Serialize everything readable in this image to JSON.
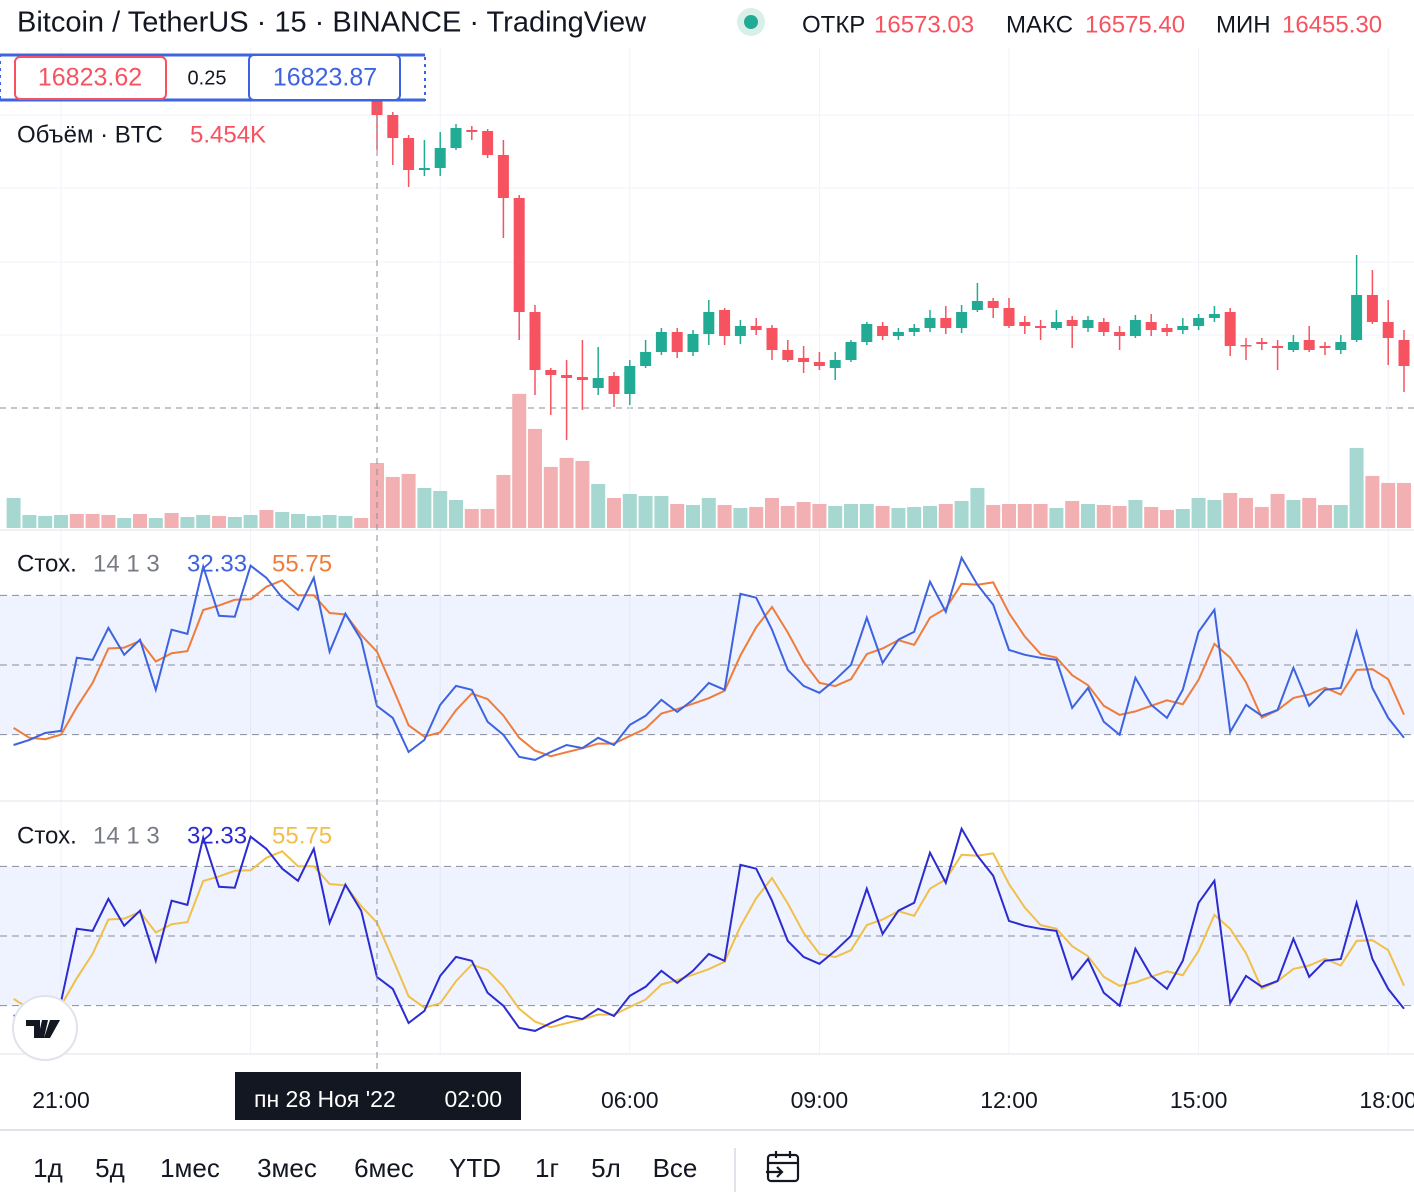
{
  "header": {
    "title": "Bitcoin / TetherUS · 15 · BINANCE · TradingView",
    "open_label": "ОТКР",
    "high_label": "МАКС",
    "low_label": "МИН"
  },
  "measure": {
    "from": "16823.62",
    "diff": "0.25",
    "to": "16823.87"
  },
  "chart_data": {
    "type": "candlestick",
    "categories": [
      null,
      null,
      null,
      "21:00",
      null,
      null,
      null,
      null,
      null,
      null,
      null,
      null,
      null,
      null,
      null,
      null,
      null,
      null,
      null,
      null,
      null,
      null,
      null,
      null,
      null,
      null,
      null,
      null,
      null,
      null,
      null,
      null,
      null,
      null,
      null,
      null,
      null,
      null,
      null,
      "06:00",
      null,
      null,
      null,
      null,
      null,
      null,
      null,
      null,
      null,
      null,
      null,
      "09:00",
      null,
      null,
      null,
      null,
      null,
      null,
      null,
      null,
      null,
      null,
      null,
      "12:00",
      null,
      null,
      null,
      null,
      null,
      null,
      null,
      null,
      null,
      null,
      null,
      "15:00",
      null,
      null,
      null,
      null,
      null,
      null,
      null,
      null,
      null,
      null,
      null,
      "18:00",
      null
    ],
    "hover_date": "пн 28 Ноя '22",
    "hover_time": "02:00",
    "price": {
      "open": [
        null,
        null,
        null,
        null,
        null,
        null,
        null,
        null,
        null,
        null,
        null,
        null,
        null,
        null,
        null,
        null,
        null,
        null,
        null,
        null,
        null,
        null,
        null,
        16573.03,
        16525,
        16479,
        16415,
        16419,
        16459,
        16495,
        16493,
        16445,
        16359,
        16131,
        16015,
        16005,
        16001,
        15979,
        16003,
        15967,
        16023,
        16051,
        16091,
        16051,
        16087,
        16135,
        16083,
        16103,
        16099,
        16055,
        16039,
        16031,
        16019,
        16035,
        16071,
        16103,
        16083,
        16091,
        16099,
        16119,
        16099,
        16135,
        16153,
        16139,
        16111,
        16103,
        16099,
        16115,
        16099,
        16111,
        16091,
        16083,
        16111,
        16099,
        16095,
        16103,
        16119,
        16131,
        16065,
        16071,
        16063,
        16055,
        16075,
        16063,
        16055,
        16075,
        16165,
        16111,
        16075
      ],
      "high": [
        null,
        null,
        null,
        null,
        null,
        null,
        null,
        null,
        null,
        null,
        null,
        null,
        null,
        null,
        null,
        null,
        null,
        null,
        null,
        null,
        null,
        null,
        null,
        16575.4,
        16531,
        16485,
        16475,
        16491,
        16507,
        16503,
        16497,
        16475,
        16365,
        16145,
        16019,
        16035,
        16075,
        16061,
        16011,
        16035,
        16075,
        16099,
        16099,
        16095,
        16155,
        16139,
        16115,
        16119,
        16105,
        16075,
        16063,
        16051,
        16051,
        16075,
        16111,
        16111,
        16099,
        16107,
        16135,
        16143,
        16145,
        16189,
        16159,
        16159,
        16123,
        16115,
        16135,
        16123,
        16123,
        16119,
        16103,
        16125,
        16127,
        16107,
        16119,
        16127,
        16143,
        16139,
        16079,
        16079,
        16075,
        16085,
        16103,
        16071,
        16085,
        16245,
        16215,
        16155,
        16095
      ],
      "low": [
        null,
        null,
        null,
        null,
        null,
        null,
        null,
        null,
        null,
        null,
        null,
        null,
        null,
        null,
        null,
        null,
        null,
        null,
        null,
        null,
        null,
        null,
        null,
        16455.3,
        16425,
        16381,
        16403,
        16403,
        16455,
        16475,
        16439,
        16279,
        16075,
        15965,
        15925,
        15875,
        15935,
        15965,
        15941,
        15945,
        16019,
        16045,
        16039,
        16043,
        16065,
        16065,
        16067,
        16085,
        16035,
        16031,
        16009,
        16015,
        15995,
        16031,
        16065,
        16075,
        16075,
        16083,
        16091,
        16087,
        16089,
        16131,
        16119,
        16099,
        16087,
        16075,
        16095,
        16059,
        16091,
        16083,
        16055,
        16079,
        16083,
        16083,
        16087,
        16095,
        16111,
        16043,
        16035,
        16055,
        16015,
        16051,
        16051,
        16045,
        16047,
        16071,
        16107,
        16025,
        15971
      ],
      "close": [
        null,
        null,
        null,
        null,
        null,
        null,
        null,
        null,
        null,
        null,
        null,
        null,
        null,
        null,
        null,
        null,
        null,
        null,
        null,
        null,
        null,
        null,
        null,
        16525,
        16479,
        16415,
        16419,
        16459,
        16499,
        16491,
        16445,
        16359,
        16131,
        16015,
        16005,
        15999,
        15995,
        15999,
        15967,
        16023,
        16051,
        16091,
        16051,
        16087,
        16131,
        16083,
        16103,
        16095,
        16055,
        16035,
        16031,
        16023,
        16035,
        16071,
        16107,
        16083,
        16091,
        16099,
        16119,
        16099,
        16131,
        16153,
        16139,
        16103,
        16103,
        16099,
        16111,
        16103,
        16115,
        16091,
        16083,
        16115,
        16095,
        16091,
        16103,
        16119,
        16127,
        16063,
        16063,
        16067,
        16059,
        16071,
        16055,
        16059,
        16071,
        16165,
        16111,
        16079,
        16023
      ],
      "hover_labels": {
        "open": "16573.03",
        "high": "16575.40",
        "low": "16455.30"
      },
      "ylim": [
        15699,
        16755
      ],
      "up_color": "#22ab94",
      "down_color": "#f7525f"
    },
    "volume": {
      "name": "Объём · BTC",
      "values": [
        2520,
        1092,
        1008,
        1092,
        1176,
        1176,
        1092,
        840,
        1176,
        840,
        1260,
        924,
        1092,
        1008,
        924,
        1092,
        1512,
        1344,
        1176,
        1008,
        1092,
        1008,
        840,
        5454,
        4284,
        4536,
        3360,
        3108,
        2352,
        1596,
        1596,
        4452,
        11256,
        8316,
        5124,
        5880,
        5628,
        3696,
        2520,
        2856,
        2688,
        2688,
        2016,
        1932,
        2520,
        1932,
        1680,
        1764,
        2520,
        1848,
        2184,
        2016,
        1848,
        2016,
        2016,
        1848,
        1680,
        1764,
        1848,
        2016,
        2268,
        3360,
        1932,
        2016,
        2016,
        2016,
        1680,
        2268,
        2016,
        1932,
        1848,
        2352,
        1764,
        1512,
        1596,
        2520,
        2352,
        2940,
        2520,
        1764,
        2856,
        2352,
        2520,
        1932,
        1932,
        6720,
        4368,
        3780,
        3780
      ],
      "up": [
        true,
        true,
        true,
        true,
        false,
        false,
        false,
        true,
        false,
        true,
        false,
        true,
        true,
        false,
        true,
        true,
        false,
        true,
        true,
        true,
        true,
        true,
        false,
        false,
        false,
        false,
        true,
        true,
        true,
        false,
        false,
        false,
        false,
        false,
        false,
        false,
        false,
        true,
        false,
        true,
        true,
        true,
        false,
        true,
        true,
        false,
        true,
        false,
        false,
        false,
        false,
        false,
        true,
        true,
        true,
        false,
        true,
        true,
        true,
        false,
        true,
        true,
        false,
        false,
        false,
        false,
        true,
        false,
        true,
        false,
        false,
        true,
        false,
        false,
        true,
        true,
        true,
        false,
        false,
        false,
        false,
        true,
        false,
        false,
        true,
        true,
        false,
        false,
        false
      ],
      "value_label": "5.454K",
      "ylim": [
        0,
        12000
      ],
      "up_color": "#a6d8d1",
      "down_color": "#f2b0b3"
    },
    "indicators": [
      {
        "name": "Стох.",
        "params": "14 1 3",
        "ylim": [
          0,
          100
        ],
        "levels": [
          80,
          50,
          20
        ],
        "k": {
          "color": "#3d63e0",
          "values": [
            15.5,
            17.7,
            20.7,
            21.6,
            53.1,
            52.2,
            66.0,
            54.4,
            60.9,
            39.3,
            65.2,
            63.4,
            92.4,
            71.2,
            70.8,
            92.8,
            87.6,
            79.0,
            73.8,
            87.6,
            55.7,
            72.1,
            60.9,
            32.33,
            27.2,
            12.5,
            17.7,
            32.8,
            41.0,
            39.3,
            25.5,
            19.9,
            10.4,
            9.1,
            12.5,
            15.5,
            14.2,
            18.6,
            15.5,
            24.2,
            28.1,
            35.0,
            29.8,
            35.0,
            42.3,
            39.3,
            80.7,
            79.0,
            65.2,
            47.9,
            41.0,
            38.0,
            43.6,
            50.1,
            70.4,
            50.9,
            60.9,
            64.3,
            85.9,
            72.9,
            96.2,
            84.6,
            76.0,
            56.5,
            54.4,
            53.1,
            52.2,
            31.5,
            40.1,
            25.5,
            19.9,
            44.5,
            32.8,
            27.2,
            39.3,
            64.3,
            73.8,
            21.1,
            32.8,
            28.1,
            30.6,
            48.8,
            32.4,
            39.3,
            40.1,
            64.3,
            40.1,
            27.2,
            18.6
          ]
        },
        "d": {
          "color": "#f07c3a",
          "values": [
            22.9,
            18.6,
            18.0,
            20.0,
            31.8,
            42.3,
            57.1,
            57.5,
            60.4,
            51.5,
            55.1,
            56.0,
            73.7,
            75.7,
            78.1,
            78.3,
            83.7,
            86.5,
            80.1,
            80.1,
            72.4,
            71.8,
            62.9,
            55.75,
            40.1,
            24.0,
            19.1,
            21.0,
            30.5,
            37.7,
            35.3,
            28.2,
            18.6,
            13.1,
            10.7,
            12.4,
            14.1,
            16.1,
            16.1,
            19.4,
            22.6,
            29.1,
            31.0,
            33.3,
            35.7,
            38.9,
            54.1,
            66.3,
            75.0,
            64.0,
            51.4,
            42.3,
            40.9,
            43.9,
            54.7,
            57.1,
            60.7,
            58.7,
            70.4,
            74.4,
            85.0,
            84.6,
            85.6,
            72.4,
            62.3,
            54.7,
            53.2,
            45.6,
            41.3,
            32.4,
            28.5,
            30.0,
            32.4,
            34.8,
            33.1,
            43.6,
            59.1,
            53.1,
            42.6,
            27.3,
            30.5,
            35.8,
            37.3,
            40.2,
            37.3,
            47.9,
            48.2,
            43.9,
            28.6
          ]
        }
      },
      {
        "name": "Стох.",
        "params": "14 1 3",
        "ylim": [
          0,
          100
        ],
        "levels": [
          80,
          50,
          20
        ],
        "k": {
          "color": "#2b2bd0",
          "values": [
            15.5,
            17.7,
            20.7,
            21.6,
            53.1,
            52.2,
            66.0,
            54.4,
            60.9,
            39.3,
            65.2,
            63.4,
            92.4,
            71.2,
            70.8,
            92.8,
            87.6,
            79.0,
            73.8,
            87.6,
            55.7,
            72.1,
            60.9,
            32.33,
            27.2,
            12.5,
            17.7,
            32.8,
            41.0,
            39.3,
            25.5,
            19.9,
            10.4,
            9.1,
            12.5,
            15.5,
            14.2,
            18.6,
            15.5,
            24.2,
            28.1,
            35.0,
            29.8,
            35.0,
            42.3,
            39.3,
            80.7,
            79.0,
            65.2,
            47.9,
            41.0,
            38.0,
            43.6,
            50.1,
            70.4,
            50.9,
            60.9,
            64.3,
            85.9,
            72.9,
            96.2,
            84.6,
            76.0,
            56.5,
            54.4,
            53.1,
            52.2,
            31.5,
            40.1,
            25.5,
            19.9,
            44.5,
            32.8,
            27.2,
            39.3,
            64.3,
            73.8,
            21.1,
            32.8,
            28.1,
            30.6,
            48.8,
            32.4,
            39.3,
            40.1,
            64.3,
            40.1,
            27.2,
            18.6
          ]
        },
        "d": {
          "color": "#f0c04a",
          "values": [
            22.9,
            18.6,
            18.0,
            20.0,
            31.8,
            42.3,
            57.1,
            57.5,
            60.4,
            51.5,
            55.1,
            56.0,
            73.7,
            75.7,
            78.1,
            78.3,
            83.7,
            86.5,
            80.1,
            80.1,
            72.4,
            71.8,
            62.9,
            55.75,
            40.1,
            24.0,
            19.1,
            21.0,
            30.5,
            37.7,
            35.3,
            28.2,
            18.6,
            13.1,
            10.7,
            12.4,
            14.1,
            16.1,
            16.1,
            19.4,
            22.6,
            29.1,
            31.0,
            33.3,
            35.7,
            38.9,
            54.1,
            66.3,
            75.0,
            64.0,
            51.4,
            42.3,
            40.9,
            43.9,
            54.7,
            57.1,
            60.7,
            58.7,
            70.4,
            74.4,
            85.0,
            84.6,
            85.6,
            72.4,
            62.3,
            54.7,
            53.2,
            45.6,
            41.3,
            32.4,
            28.5,
            30.0,
            32.4,
            34.8,
            33.1,
            43.6,
            59.1,
            53.1,
            42.6,
            27.3,
            30.5,
            35.8,
            37.3,
            40.2,
            37.3,
            47.9,
            48.2,
            43.9,
            28.6
          ]
        }
      }
    ]
  },
  "toolbar": {
    "ranges": [
      "1д",
      "5д",
      "1мес",
      "3мес",
      "6мес",
      "YTD",
      "1г",
      "5л",
      "Все"
    ]
  }
}
